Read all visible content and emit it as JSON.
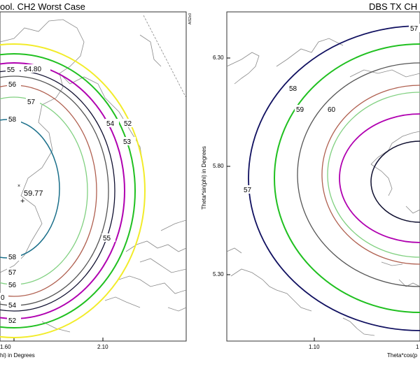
{
  "left_panel": {
    "title": "ool. CH2 Worst Case",
    "xticks": [
      "1.60",
      "2.10"
    ],
    "xlabel": "hi) in Degrees",
    "corner_mark": "AIS2c0",
    "peak_label": "59.77",
    "contour_labels": [
      "55",
      "54.80",
      "56",
      "57",
      "58",
      "54",
      "52",
      "53",
      "55",
      "58",
      "57",
      "56",
      "0",
      "54",
      "52"
    ],
    "colors": {
      "c52": "#f2ec2a",
      "c53": "#20c020",
      "c54": "#b000b0",
      "c548": "#101030",
      "c55": "#555555",
      "c56": "#b06050",
      "c57": "#80d080",
      "c58": "#1a6f8a"
    }
  },
  "right_panel": {
    "title": "DBS TX CH",
    "yticks": [
      "6.30",
      "5.80",
      "5.30"
    ],
    "xticks": [
      "1.10",
      "1"
    ],
    "ylabel": "Theta*sin(phi) in Degrees",
    "xlabel": "Theta*cos(p",
    "contour_labels": [
      "57",
      "58",
      "59",
      "60",
      "57"
    ],
    "colors": {
      "c57": "#101060",
      "c58": "#20c020",
      "c59": "#555555",
      "c60": "#b06050",
      "c605": "#80d080",
      "c61": "#b000b0",
      "c62": "#101030"
    }
  }
}
